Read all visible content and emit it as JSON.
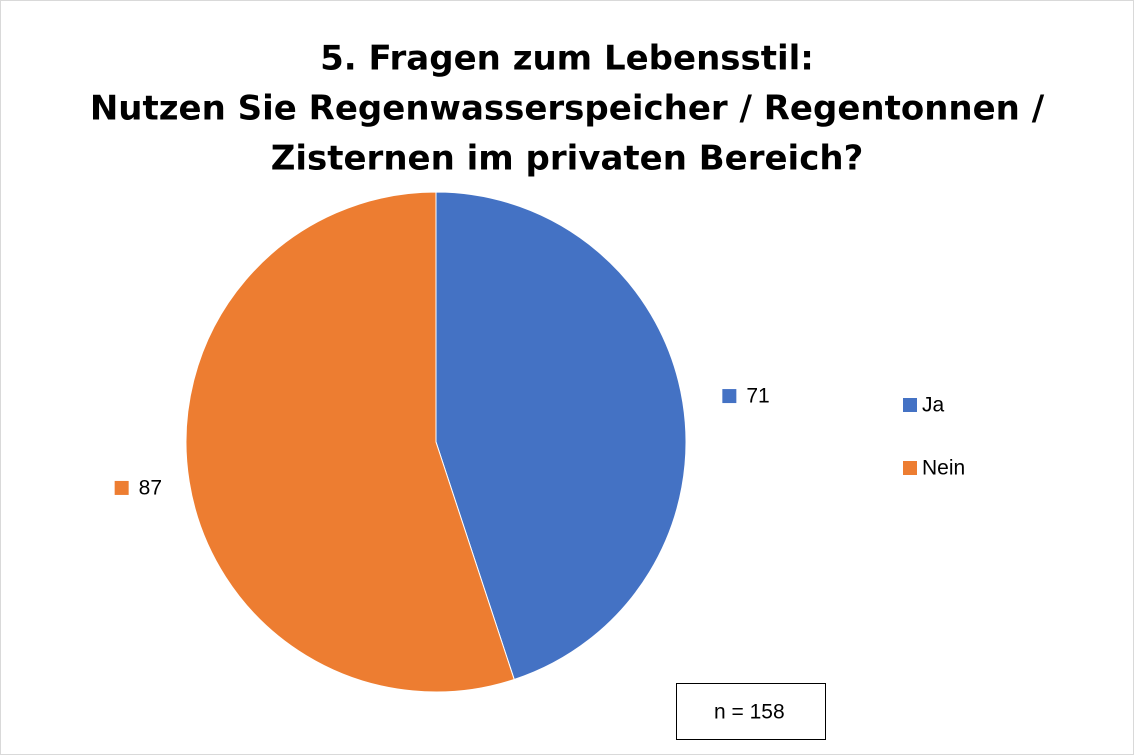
{
  "chart_data": {
    "type": "pie",
    "title": [
      "5. Fragen zum Lebensstil:",
      "Nutzen Sie Regenwasserspeicher / Regentonnen /",
      "Zisternen im privaten Bereich?"
    ],
    "categories": [
      "Ja",
      "Nein"
    ],
    "values": [
      71,
      87
    ],
    "colors": [
      "#4472c4",
      "#ed7d31"
    ],
    "annotation": "n = 158",
    "legend": "right"
  }
}
